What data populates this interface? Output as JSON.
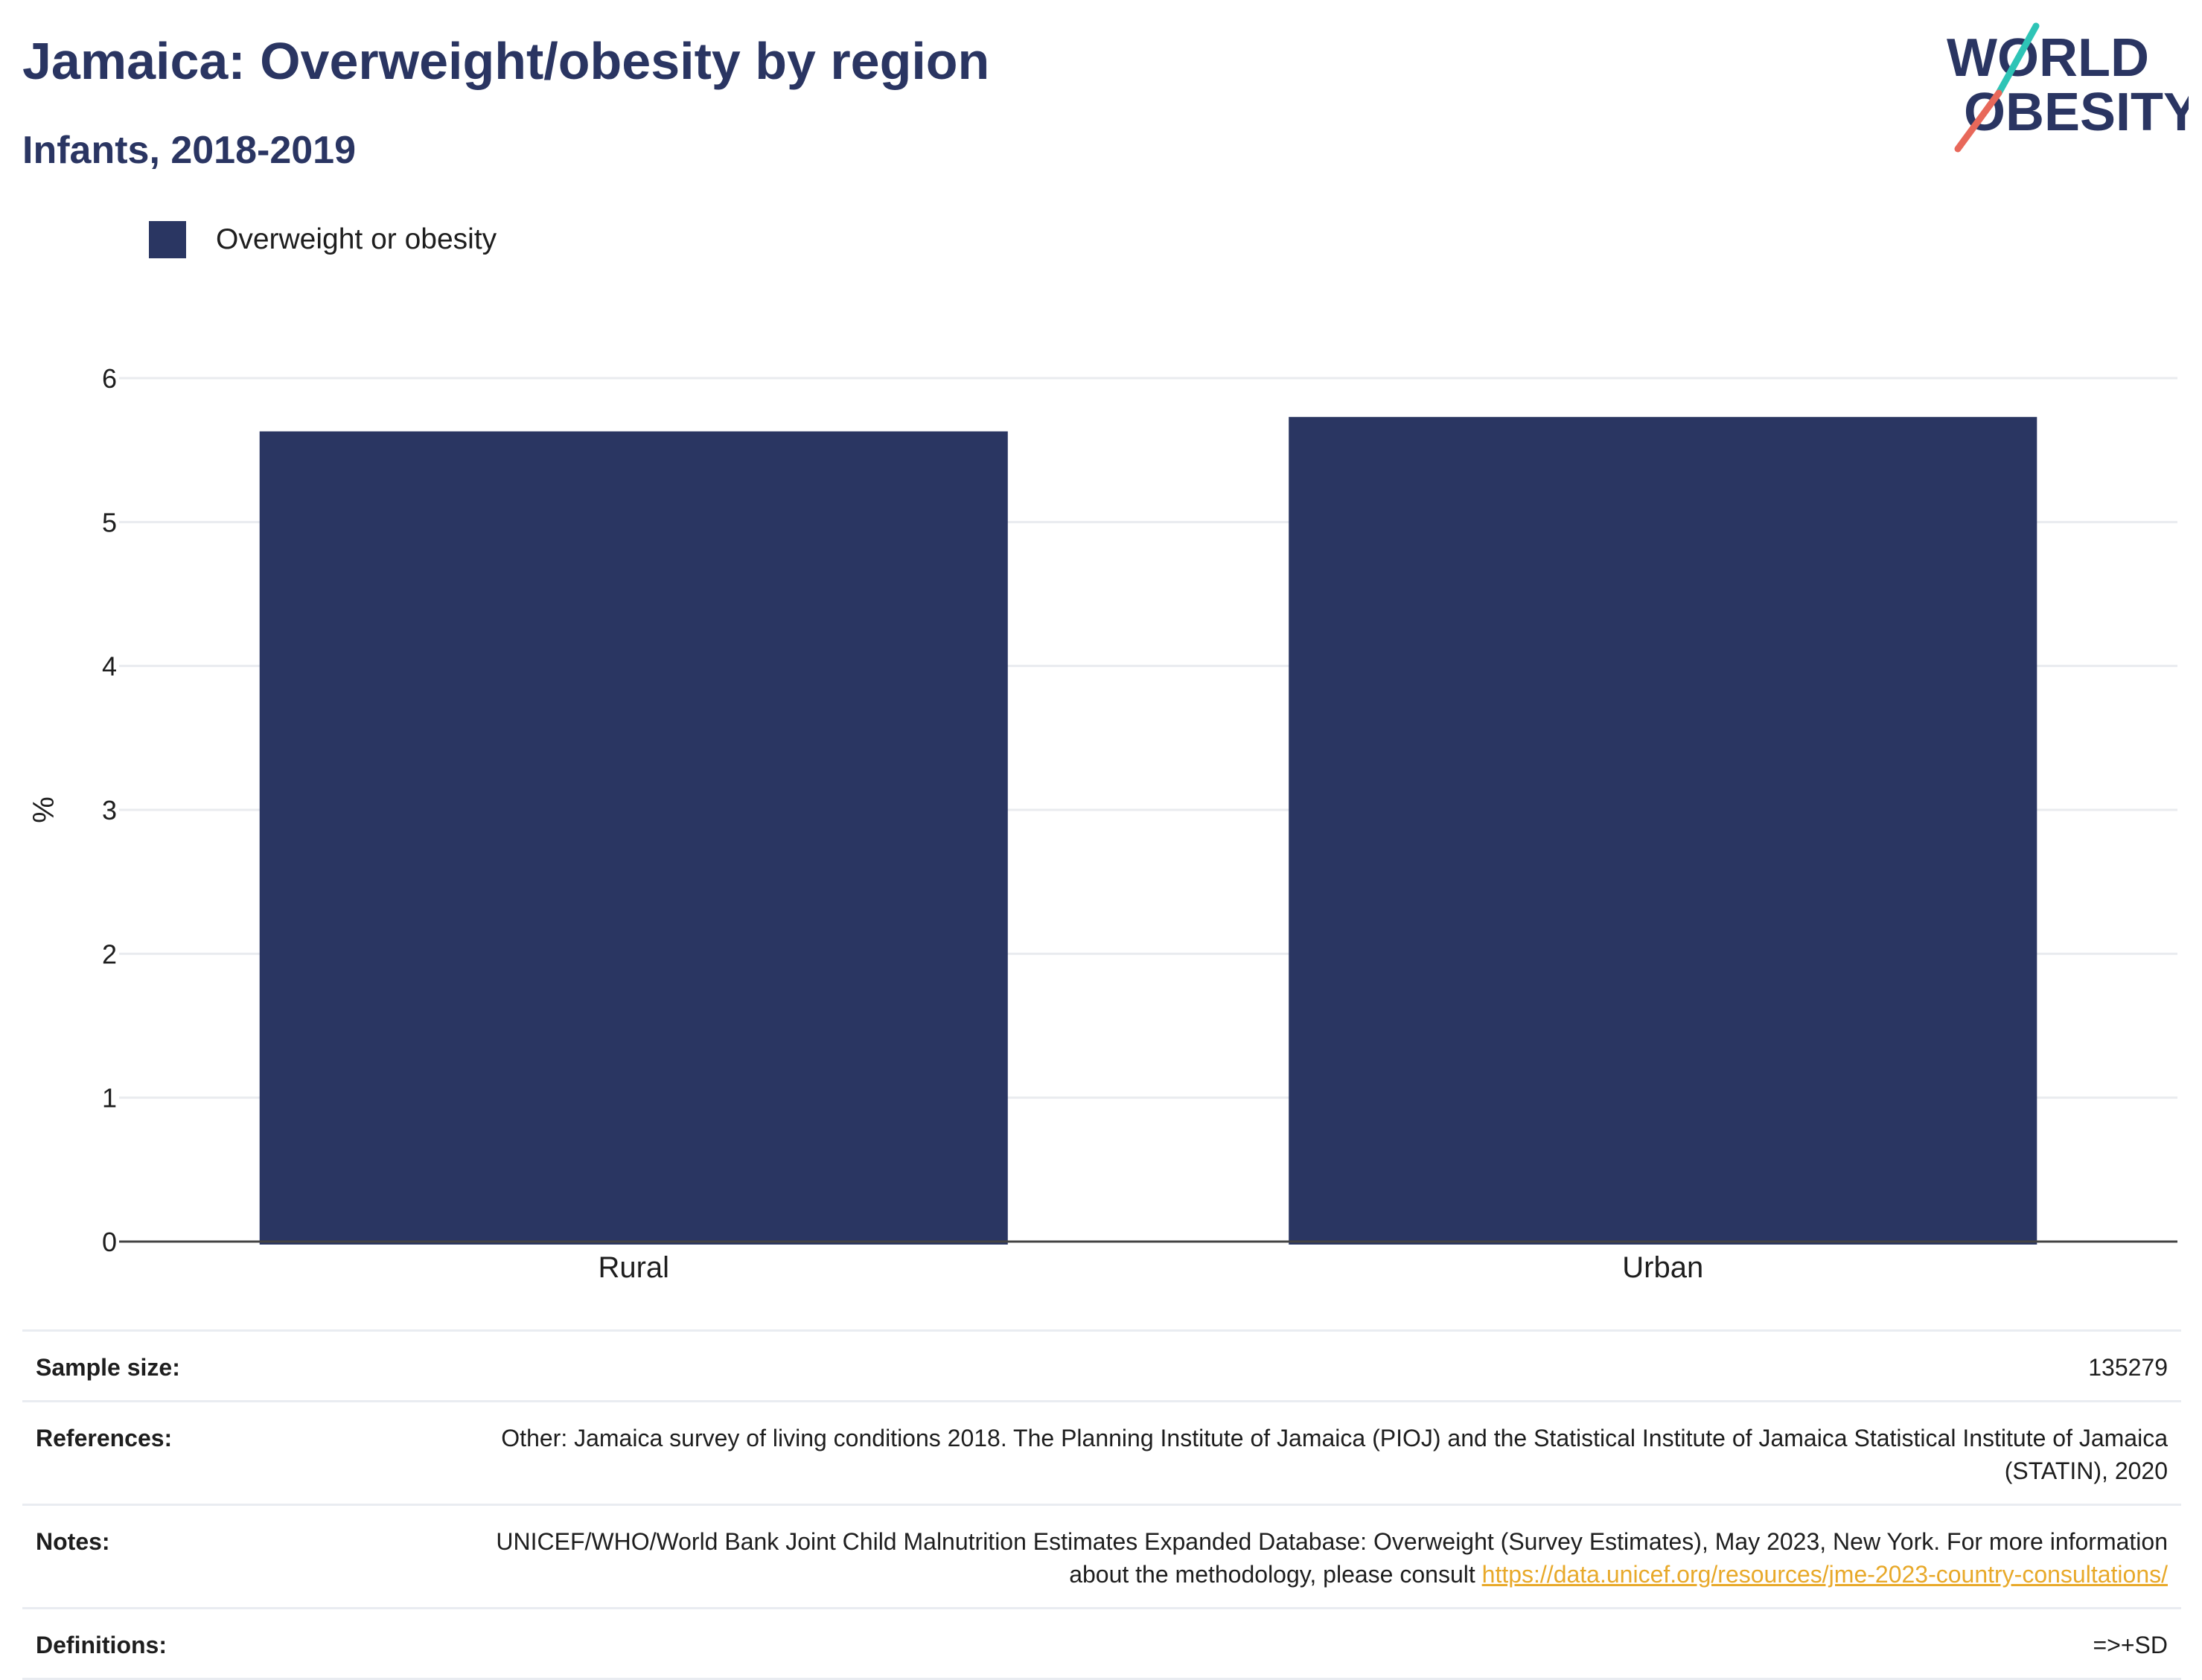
{
  "header": {
    "title": "Jamaica: Overweight/obesity by region",
    "subtitle": "Infants, 2018-2019"
  },
  "logo": {
    "line1": "WORLD",
    "line2": "OBESITY"
  },
  "legend": {
    "label": "Overweight or obesity",
    "color": "#2a3662"
  },
  "chart_data": {
    "type": "bar",
    "categories": [
      "Rural",
      "Urban"
    ],
    "series": [
      {
        "name": "Overweight or obesity",
        "values": [
          5.63,
          5.73
        ]
      }
    ],
    "title": "Jamaica: Overweight/obesity by region",
    "subtitle": "Infants, 2018-2019",
    "xlabel": "",
    "ylabel": "%",
    "ylim": [
      0,
      6
    ],
    "yticks": [
      "0",
      "1",
      "2",
      "3",
      "4",
      "5",
      "6"
    ],
    "grid": true,
    "legend_position": "top-left",
    "bar_color": "#2a3662"
  },
  "meta": {
    "sample_size_label": "Sample size:",
    "sample_size_value": "135279",
    "references_label": "References:",
    "references_value": "Other: Jamaica survey of living conditions 2018. The Planning Institute of Jamaica (PIOJ) and the Statistical Institute of Jamaica Statistical Institute of Jamaica (STATIN), 2020",
    "notes_label": "Notes:",
    "notes_text": "UNICEF/WHO/World Bank Joint Child Malnutrition Estimates Expanded Database: Overweight (Survey Estimates), May 2023, New York. For more information about the methodology, please consult ",
    "notes_link": "https://data.unicef.org/resources/jme-2023-country-consultations/",
    "definitions_label": "Definitions:",
    "definitions_value": "=>+SD"
  },
  "colors": {
    "brand_navy": "#2a3562",
    "brand_teal": "#2ec4b6",
    "brand_coral": "#e8685a",
    "link": "#e8a92a"
  }
}
